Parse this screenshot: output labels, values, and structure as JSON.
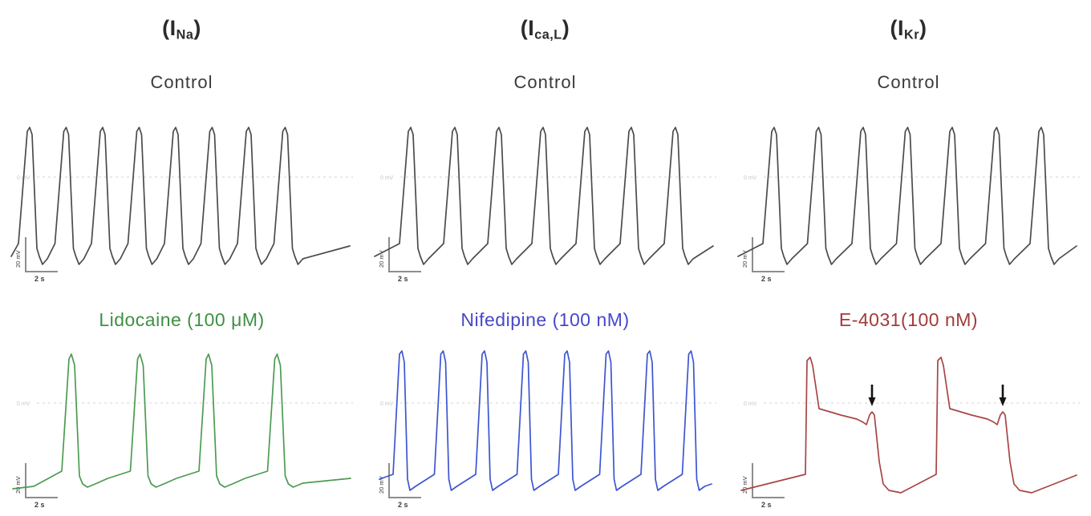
{
  "page": {
    "background": "#ffffff"
  },
  "scale": {
    "vertical": "20 mV",
    "horizontal": "2 s"
  },
  "baseline_label": "0 mV",
  "columns": [
    {
      "id": "ina",
      "current": {
        "open": "(I",
        "sub": "Na",
        "close": ")"
      },
      "control_label": "Control",
      "drug_label": "Lidocaine (100 μM)",
      "drug_label_color": "#3f9043"
    },
    {
      "id": "ical",
      "current": {
        "open": "(I",
        "sub": "ca,L",
        "close": ")"
      },
      "control_label": "Control",
      "drug_label": "Nifedipine (100 nM)",
      "drug_label_color": "#4747cb"
    },
    {
      "id": "ikr",
      "current": {
        "open": "(I",
        "sub": "Kr",
        "close": ")"
      },
      "control_label": "Control",
      "drug_label": "E-4031(100 nM)",
      "drug_label_color": "#a33a3a"
    }
  ],
  "chart_data": [
    {
      "panel": "I_Na - Control",
      "type": "line",
      "series": "Control",
      "color": "#4b4b4b",
      "n_action_potentials": 8,
      "approx_cycle_length_s": 2.3,
      "x_scale_bar": "2 s",
      "y_scale_bar": "20 mV",
      "baseline": "0 mV",
      "waveform": "regular spontaneous pacemaker-like action potentials"
    },
    {
      "panel": "I_ca,L - Control",
      "type": "line",
      "series": "Control",
      "color": "#4b4b4b",
      "n_action_potentials": 7,
      "approx_cycle_length_s": 2.8,
      "x_scale_bar": "2 s",
      "y_scale_bar": "20 mV",
      "baseline": "0 mV",
      "waveform": "regular spontaneous pacemaker-like action potentials"
    },
    {
      "panel": "I_Kr - Control",
      "type": "line",
      "series": "Control",
      "color": "#4b4b4b",
      "n_action_potentials": 7,
      "approx_cycle_length_s": 2.8,
      "x_scale_bar": "2 s",
      "y_scale_bar": "20 mV",
      "baseline": "0 mV",
      "waveform": "regular spontaneous pacemaker-like action potentials"
    },
    {
      "panel": "I_Na - Lidocaine (100 μM)",
      "type": "line",
      "series": "Lidocaine (100 μM)",
      "color": "#4c9b52",
      "n_action_potentials": 4,
      "approx_cycle_length_s": 4.3,
      "x_scale_bar": "2 s",
      "y_scale_bar": "20 mV",
      "baseline": "0 mV",
      "waveform": "slowed firing rate with prolonged diastolic depolarization"
    },
    {
      "panel": "I_ca,L - Nifedipine (100 nM)",
      "type": "line",
      "series": "Nifedipine (100 nM)",
      "color": "#3d55cf",
      "n_action_potentials": 8,
      "approx_cycle_length_s": 2.6,
      "x_scale_bar": "2 s",
      "y_scale_bar": "20 mV",
      "baseline": "0 mV",
      "waveform": "narrow tall action potentials, shortened duration"
    },
    {
      "panel": "I_Kr - E-4031(100 nM)",
      "type": "line",
      "series": "E-4031(100 nM)",
      "color": "#a84545",
      "n_action_potentials": 2,
      "approx_cycle_length_s": 8,
      "x_scale_bar": "2 s",
      "y_scale_bar": "20 mV",
      "baseline": "0 mV",
      "n_arrows": 2,
      "arrow_color": "#141414",
      "annotations": "black down-arrows mark early-afterdepolarization humps during repolarization",
      "waveform": "markedly prolonged action potentials with EAD humps"
    }
  ]
}
